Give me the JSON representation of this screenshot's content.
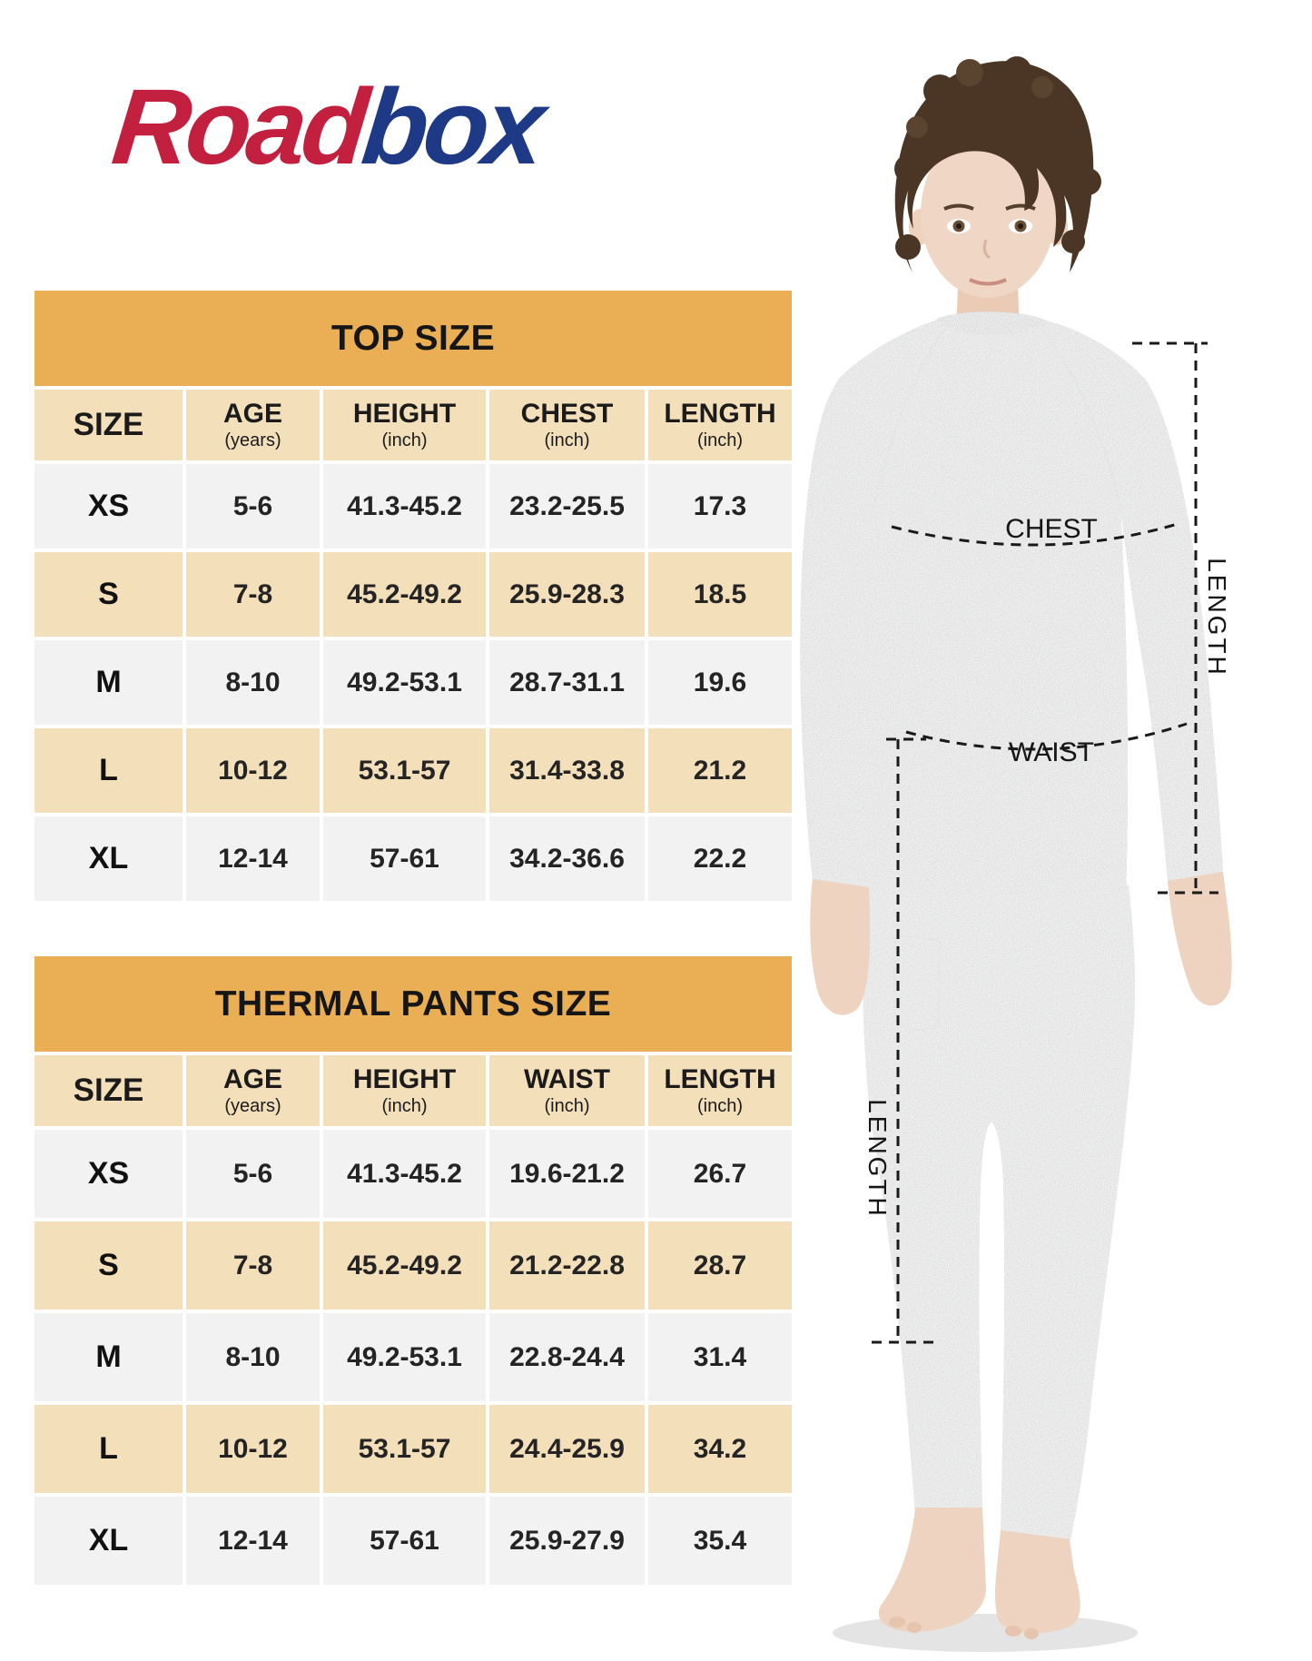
{
  "logo": {
    "part1": "Road",
    "part2": "box"
  },
  "colors": {
    "title_band": "#EAAE55",
    "header_cell": "#F3DFBA",
    "row_light": "#F2F2F3",
    "row_tan": "#F3DFBA",
    "logo_red": "#C2203E",
    "logo_blue": "#1E3A86"
  },
  "tables": [
    {
      "title": "TOP SIZE",
      "columns": [
        {
          "label": "SIZE",
          "unit": ""
        },
        {
          "label": "AGE",
          "unit": "(years)"
        },
        {
          "label": "HEIGHT",
          "unit": "(inch)"
        },
        {
          "label": "CHEST",
          "unit": "(inch)"
        },
        {
          "label": "LENGTH",
          "unit": "(inch)"
        }
      ],
      "rows": [
        [
          "XS",
          "5-6",
          "41.3-45.2",
          "23.2-25.5",
          "17.3"
        ],
        [
          "S",
          "7-8",
          "45.2-49.2",
          "25.9-28.3",
          "18.5"
        ],
        [
          "M",
          "8-10",
          "49.2-53.1",
          "28.7-31.1",
          "19.6"
        ],
        [
          "L",
          "10-12",
          "53.1-57",
          "31.4-33.8",
          "21.2"
        ],
        [
          "XL",
          "12-14",
          "57-61",
          "34.2-36.6",
          "22.2"
        ]
      ]
    },
    {
      "title": "THERMAL PANTS SIZE",
      "columns": [
        {
          "label": "SIZE",
          "unit": ""
        },
        {
          "label": "AGE",
          "unit": "(years)"
        },
        {
          "label": "HEIGHT",
          "unit": "(inch)"
        },
        {
          "label": "WAIST",
          "unit": "(inch)"
        },
        {
          "label": "LENGTH",
          "unit": "(inch)"
        }
      ],
      "rows": [
        [
          "XS",
          "5-6",
          "41.3-45.2",
          "19.6-21.2",
          "26.7"
        ],
        [
          "S",
          "7-8",
          "45.2-49.2",
          "21.2-22.8",
          "28.7"
        ],
        [
          "M",
          "8-10",
          "49.2-53.1",
          "22.8-24.4",
          "31.4"
        ],
        [
          "L",
          "10-12",
          "53.1-57",
          "24.4-25.9",
          "34.2"
        ],
        [
          "XL",
          "12-14",
          "57-61",
          "25.9-27.9",
          "35.4"
        ]
      ]
    }
  ],
  "annotations": {
    "chest": "CHEST",
    "waist": "WAIST",
    "top_length": "LENGTH",
    "pants_length": "LENGTH"
  }
}
